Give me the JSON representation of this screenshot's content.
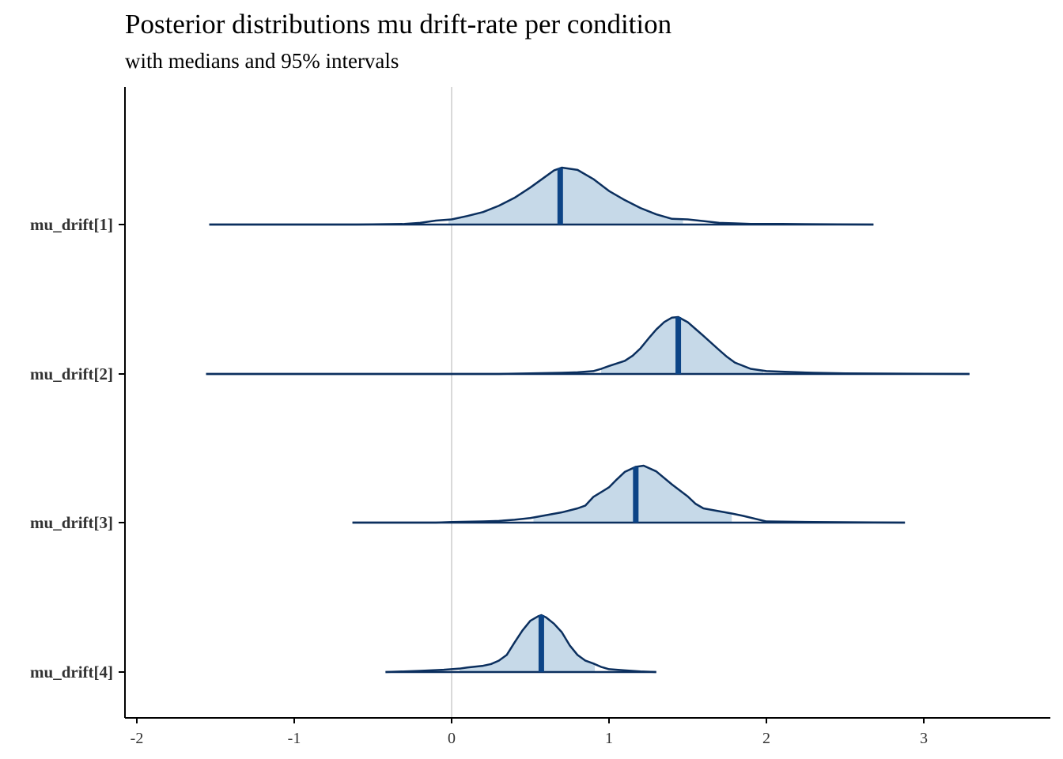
{
  "chart_data": {
    "type": "area",
    "title": "Posterior distributions mu drift-rate per condition",
    "subtitle": "with medians and 95% intervals",
    "xlabel": "",
    "ylabel": "",
    "xlim": [
      -2.06,
      3.82
    ],
    "x_ticks": [
      -2,
      -1,
      0,
      1,
      2,
      3
    ],
    "x_tick_labels": [
      "-2",
      "-1",
      "0",
      "1",
      "2",
      "3"
    ],
    "reference_line": 0,
    "grid": false,
    "legend": "none",
    "colors": {
      "fill": "#c6d9e8",
      "outline": "#0b2f5e",
      "median": "#0c4486",
      "reference": "#d9d9d9"
    },
    "series": [
      {
        "name": "mu_drift[1]",
        "range": [
          -1.54,
          2.68
        ],
        "median": 0.69,
        "interval_95": [
          -0.02,
          1.47
        ],
        "peak": 0.68,
        "density": [
          [
            -1.54,
            0.0
          ],
          [
            -0.6,
            0.0
          ],
          [
            -0.3,
            0.01
          ],
          [
            -0.2,
            0.03
          ],
          [
            -0.1,
            0.07
          ],
          [
            0.0,
            0.09
          ],
          [
            0.1,
            0.15
          ],
          [
            0.2,
            0.22
          ],
          [
            0.3,
            0.33
          ],
          [
            0.4,
            0.47
          ],
          [
            0.5,
            0.65
          ],
          [
            0.6,
            0.85
          ],
          [
            0.65,
            0.95
          ],
          [
            0.7,
            1.0
          ],
          [
            0.8,
            0.96
          ],
          [
            0.9,
            0.8
          ],
          [
            1.0,
            0.59
          ],
          [
            1.1,
            0.43
          ],
          [
            1.2,
            0.29
          ],
          [
            1.3,
            0.18
          ],
          [
            1.4,
            0.1
          ],
          [
            1.5,
            0.09
          ],
          [
            1.6,
            0.06
          ],
          [
            1.7,
            0.03
          ],
          [
            1.8,
            0.02
          ],
          [
            1.9,
            0.01
          ],
          [
            2.1,
            0.01
          ],
          [
            2.68,
            0.0
          ]
        ]
      },
      {
        "name": "mu_drift[2]",
        "range": [
          -1.56,
          3.29
        ],
        "median": 1.44,
        "interval_95": [
          0.95,
          1.98
        ],
        "peak": 1.43,
        "density": [
          [
            -1.56,
            0.0
          ],
          [
            0.3,
            0.0
          ],
          [
            0.5,
            0.01
          ],
          [
            0.7,
            0.02
          ],
          [
            0.8,
            0.03
          ],
          [
            0.9,
            0.05
          ],
          [
            0.95,
            0.09
          ],
          [
            1.0,
            0.14
          ],
          [
            1.1,
            0.23
          ],
          [
            1.15,
            0.32
          ],
          [
            1.2,
            0.45
          ],
          [
            1.25,
            0.62
          ],
          [
            1.3,
            0.78
          ],
          [
            1.35,
            0.91
          ],
          [
            1.4,
            0.99
          ],
          [
            1.44,
            1.0
          ],
          [
            1.5,
            0.91
          ],
          [
            1.55,
            0.79
          ],
          [
            1.6,
            0.67
          ],
          [
            1.7,
            0.42
          ],
          [
            1.75,
            0.3
          ],
          [
            1.8,
            0.2
          ],
          [
            1.9,
            0.09
          ],
          [
            2.0,
            0.05
          ],
          [
            2.1,
            0.04
          ],
          [
            2.3,
            0.02
          ],
          [
            2.5,
            0.01
          ],
          [
            3.29,
            0.0
          ]
        ]
      },
      {
        "name": "mu_drift[3]",
        "range": [
          -0.63,
          2.88
        ],
        "median": 1.17,
        "interval_95": [
          0.52,
          1.78
        ],
        "peak": 1.2,
        "density": [
          [
            -0.63,
            0.0
          ],
          [
            -0.1,
            0.0
          ],
          [
            0.0,
            0.01
          ],
          [
            0.2,
            0.02
          ],
          [
            0.3,
            0.03
          ],
          [
            0.4,
            0.05
          ],
          [
            0.5,
            0.08
          ],
          [
            0.6,
            0.13
          ],
          [
            0.7,
            0.18
          ],
          [
            0.8,
            0.25
          ],
          [
            0.85,
            0.3
          ],
          [
            0.9,
            0.45
          ],
          [
            1.0,
            0.62
          ],
          [
            1.05,
            0.76
          ],
          [
            1.1,
            0.89
          ],
          [
            1.17,
            0.98
          ],
          [
            1.22,
            1.0
          ],
          [
            1.3,
            0.9
          ],
          [
            1.4,
            0.67
          ],
          [
            1.5,
            0.46
          ],
          [
            1.55,
            0.33
          ],
          [
            1.6,
            0.25
          ],
          [
            1.7,
            0.2
          ],
          [
            1.78,
            0.16
          ],
          [
            1.85,
            0.12
          ],
          [
            2.0,
            0.02
          ],
          [
            2.3,
            0.01
          ],
          [
            2.88,
            0.0
          ]
        ]
      },
      {
        "name": "mu_drift[4]",
        "range": [
          -0.42,
          1.3
        ],
        "median": 0.57,
        "interval_95": [
          0.05,
          0.91
        ],
        "peak": 0.57,
        "density": [
          [
            -0.42,
            0.0
          ],
          [
            -0.2,
            0.02
          ],
          [
            -0.05,
            0.04
          ],
          [
            0.0,
            0.05
          ],
          [
            0.05,
            0.06
          ],
          [
            0.1,
            0.08
          ],
          [
            0.2,
            0.11
          ],
          [
            0.25,
            0.14
          ],
          [
            0.3,
            0.2
          ],
          [
            0.35,
            0.3
          ],
          [
            0.4,
            0.52
          ],
          [
            0.45,
            0.73
          ],
          [
            0.5,
            0.9
          ],
          [
            0.55,
            0.98
          ],
          [
            0.57,
            1.0
          ],
          [
            0.6,
            0.96
          ],
          [
            0.65,
            0.85
          ],
          [
            0.7,
            0.7
          ],
          [
            0.75,
            0.47
          ],
          [
            0.8,
            0.3
          ],
          [
            0.85,
            0.2
          ],
          [
            0.9,
            0.15
          ],
          [
            0.95,
            0.09
          ],
          [
            1.0,
            0.05
          ],
          [
            1.1,
            0.03
          ],
          [
            1.2,
            0.01
          ],
          [
            1.3,
            0.0
          ]
        ]
      }
    ]
  }
}
